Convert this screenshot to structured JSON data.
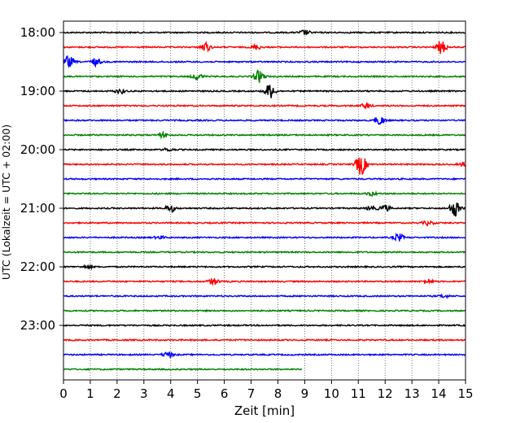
{
  "chart_data": {
    "type": "line",
    "title": "",
    "xlabel": "Zeit  [min]",
    "ylabel": "UTC (Lokalzeit = UTC + 02:00)",
    "xlim": [
      0,
      15
    ],
    "x_ticks": [
      0,
      1,
      2,
      3,
      4,
      5,
      6,
      7,
      8,
      9,
      10,
      11,
      12,
      13,
      14,
      15
    ],
    "x_tick_labels": [
      "0",
      "1",
      "2",
      "3",
      "4",
      "5",
      "6",
      "7",
      "8",
      "9",
      "10",
      "11",
      "12",
      "13",
      "14",
      "15"
    ],
    "y_tick_labels": [
      "18:00",
      "19:00",
      "20:00",
      "21:00",
      "22:00",
      "23:00"
    ],
    "grid": "vertical dotted",
    "trace_minutes": 15,
    "colors": [
      "#000000",
      "#ff0000",
      "#0000ff",
      "#008000"
    ],
    "series": [
      {
        "start": "18:00",
        "length_min": 15,
        "events": [
          {
            "t": 9.0,
            "amp": 0.35
          }
        ]
      },
      {
        "start": "18:15",
        "length_min": 15,
        "events": [
          {
            "t": 5.3,
            "amp": 0.6
          },
          {
            "t": 7.2,
            "amp": 0.3
          },
          {
            "t": 14.1,
            "amp": 0.9
          }
        ]
      },
      {
        "start": "18:30",
        "length_min": 15,
        "events": [
          {
            "t": 0.2,
            "amp": 0.8
          },
          {
            "t": 1.2,
            "amp": 0.5
          }
        ]
      },
      {
        "start": "18:45",
        "length_min": 15,
        "events": [
          {
            "t": 5.0,
            "amp": 0.45
          },
          {
            "t": 7.3,
            "amp": 0.8
          }
        ]
      },
      {
        "start": "19:00",
        "length_min": 15,
        "events": [
          {
            "t": 2.1,
            "amp": 0.35
          },
          {
            "t": 7.7,
            "amp": 1.0
          }
        ]
      },
      {
        "start": "19:15",
        "length_min": 15,
        "events": [
          {
            "t": 11.3,
            "amp": 0.35
          }
        ]
      },
      {
        "start": "19:30",
        "length_min": 15,
        "events": [
          {
            "t": 11.8,
            "amp": 0.6
          }
        ]
      },
      {
        "start": "19:45",
        "length_min": 15,
        "events": [
          {
            "t": 3.7,
            "amp": 0.3
          }
        ]
      },
      {
        "start": "20:00",
        "length_min": 15,
        "events": [
          {
            "t": 3.9,
            "amp": 0.2
          }
        ]
      },
      {
        "start": "20:15",
        "length_min": 15,
        "events": [
          {
            "t": 11.1,
            "amp": 1.5
          },
          {
            "t": 15.0,
            "amp": 0.4
          }
        ]
      },
      {
        "start": "20:30",
        "length_min": 15,
        "events": []
      },
      {
        "start": "20:45",
        "length_min": 15,
        "events": [
          {
            "t": 11.5,
            "amp": 0.25
          }
        ]
      },
      {
        "start": "21:00",
        "length_min": 15,
        "events": [
          {
            "t": 4.0,
            "amp": 0.45
          },
          {
            "t": 11.5,
            "amp": 0.3
          },
          {
            "t": 12.0,
            "amp": 0.4
          },
          {
            "t": 14.6,
            "amp": 1.1
          }
        ]
      },
      {
        "start": "21:15",
        "length_min": 15,
        "events": [
          {
            "t": 13.6,
            "amp": 0.3
          }
        ]
      },
      {
        "start": "21:30",
        "length_min": 15,
        "events": [
          {
            "t": 3.6,
            "amp": 0.2
          },
          {
            "t": 12.5,
            "amp": 0.5
          }
        ]
      },
      {
        "start": "21:45",
        "length_min": 15,
        "events": []
      },
      {
        "start": "22:00",
        "length_min": 15,
        "events": [
          {
            "t": 0.9,
            "amp": 0.2
          }
        ]
      },
      {
        "start": "22:15",
        "length_min": 15,
        "events": [
          {
            "t": 5.6,
            "amp": 0.45
          },
          {
            "t": 13.6,
            "amp": 0.35
          }
        ]
      },
      {
        "start": "22:30",
        "length_min": 15,
        "events": [
          {
            "t": 14.2,
            "amp": 0.2
          }
        ]
      },
      {
        "start": "22:45",
        "length_min": 15,
        "events": []
      },
      {
        "start": "23:00",
        "length_min": 15,
        "events": []
      },
      {
        "start": "23:15",
        "length_min": 15,
        "events": []
      },
      {
        "start": "23:30",
        "length_min": 15,
        "events": [
          {
            "t": 3.9,
            "amp": 0.4
          }
        ]
      },
      {
        "start": "23:45",
        "length_min": 8.9,
        "events": []
      }
    ]
  }
}
